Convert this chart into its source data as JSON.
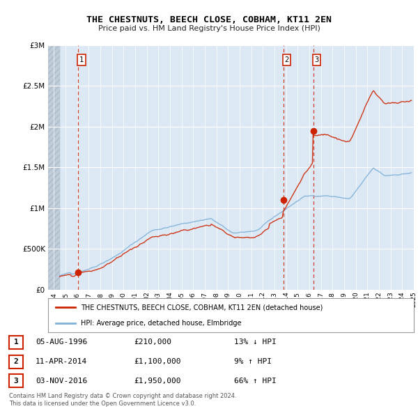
{
  "title": "THE CHESTNUTS, BEECH CLOSE, COBHAM, KT11 2EN",
  "subtitle": "Price paid vs. HM Land Registry's House Price Index (HPI)",
  "ylim": [
    0,
    3000000
  ],
  "yticks": [
    0,
    500000,
    1000000,
    1500000,
    2000000,
    2500000,
    3000000
  ],
  "ytick_labels": [
    "£0",
    "£500K",
    "£1M",
    "£1.5M",
    "£2M",
    "£2.5M",
    "£3M"
  ],
  "xlim_start": 1994.0,
  "xlim_end": 2025.5,
  "background_color": "#ffffff",
  "plot_bg_color": "#dce9f5",
  "hatch_color": "#c0ccd8",
  "hatch_end_year": 1995.0,
  "grid_color": "#ffffff",
  "hpi_line_color": "#7fb0d8",
  "price_line_color": "#cc2200",
  "sale_marker_color": "#cc2200",
  "dashed_line_color": "#cc2200",
  "sale_points": [
    {
      "year": 1996.58,
      "price": 210000,
      "label": "1"
    },
    {
      "year": 2014.25,
      "price": 1100000,
      "label": "2"
    },
    {
      "year": 2016.83,
      "price": 1950000,
      "label": "3"
    }
  ],
  "legend_label_red": "THE CHESTNUTS, BEECH CLOSE, COBHAM, KT11 2EN (detached house)",
  "legend_label_blue": "HPI: Average price, detached house, Elmbridge",
  "table_rows": [
    {
      "num": "1",
      "date": "05-AUG-1996",
      "price": "£210,000",
      "change": "13% ↓ HPI"
    },
    {
      "num": "2",
      "date": "11-APR-2014",
      "price": "£1,100,000",
      "change": "9% ↑ HPI"
    },
    {
      "num": "3",
      "date": "03-NOV-2016",
      "price": "£1,950,000",
      "change": "66% ↑ HPI"
    }
  ],
  "footnote1": "Contains HM Land Registry data © Crown copyright and database right 2024.",
  "footnote2": "This data is licensed under the Open Government Licence v3.0."
}
